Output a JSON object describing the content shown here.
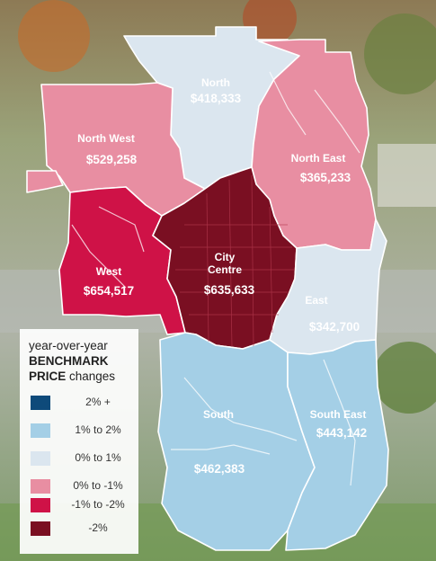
{
  "legend": {
    "title_line1": "year-over-year",
    "title_line2": "BENCHMARK",
    "title_line3_bold": "PRICE",
    "title_line3_rest": " changes",
    "items": [
      {
        "label": "2% +",
        "color": "#0e4a7a"
      },
      {
        "label": "1% to 2%",
        "color": "#a4cfe6"
      },
      {
        "label": "0% to 1%",
        "color": "#dbe6ef"
      },
      {
        "label": "0% to -1%",
        "color": "#e88ea2"
      },
      {
        "label": "-1% to -2%",
        "color": "#cf1247"
      },
      {
        "label": "-2%",
        "color": "#7a0f22"
      }
    ]
  },
  "regions": [
    {
      "name": "North",
      "price": "$418,333",
      "color": "#dbe6ef"
    },
    {
      "name": "North West",
      "price": "$529,258",
      "color": "#e88ea2"
    },
    {
      "name": "North East",
      "price": "$365,233",
      "color": "#e88ea2"
    },
    {
      "name": "West",
      "price": "$654,517",
      "color": "#cf1247"
    },
    {
      "name": "City Centre",
      "price": "$635,633",
      "color": "#7a0f22"
    },
    {
      "name": "East",
      "price": "$342,700",
      "color": "#dbe6ef"
    },
    {
      "name": "South",
      "price": "$462,383",
      "color": "#a4cfe6"
    },
    {
      "name": "South East",
      "price": "$443,142",
      "color": "#a4cfe6"
    }
  ]
}
